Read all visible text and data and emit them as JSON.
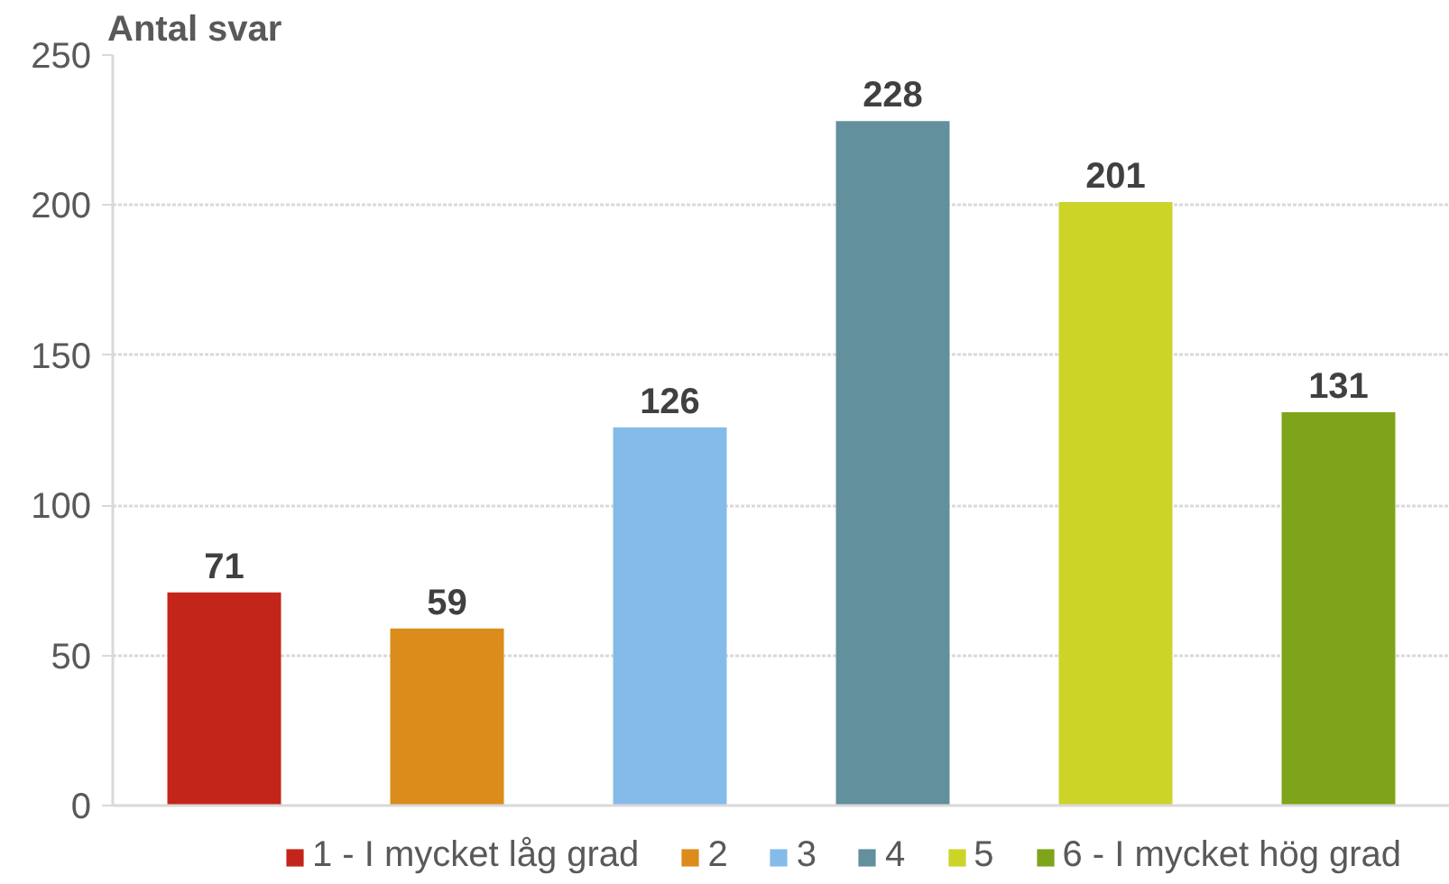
{
  "chart_data": {
    "type": "bar",
    "ylabel": "Antal svar",
    "categories": [
      null,
      null,
      null,
      null,
      null,
      null
    ],
    "stacked": true,
    "series": [
      {
        "name": "1 - I mycket låg grad",
        "color": "#c4251a",
        "values": [
          71,
          null,
          null,
          null,
          null,
          null
        ]
      },
      {
        "name": "2",
        "color": "#db8c1a",
        "values": [
          null,
          59,
          null,
          null,
          null,
          null
        ]
      },
      {
        "name": "3",
        "color": "#85bbe8",
        "values": [
          null,
          null,
          126,
          null,
          null,
          null
        ]
      },
      {
        "name": "4",
        "color": "#62909c",
        "values": [
          null,
          null,
          null,
          228,
          null,
          null
        ]
      },
      {
        "name": "5",
        "color": "#ccd428",
        "values": [
          null,
          null,
          null,
          null,
          201,
          null
        ]
      },
      {
        "name": "6 - I mycket hög grad",
        "color": "#7ea41a",
        "values": [
          null,
          null,
          null,
          null,
          null,
          131
        ]
      }
    ],
    "ylim": [
      0,
      250
    ],
    "yticks": [
      0,
      50,
      100,
      150,
      200,
      250
    ],
    "grid": "y",
    "legend": "bottom",
    "tick_labels": "y",
    "data_labels": true
  }
}
